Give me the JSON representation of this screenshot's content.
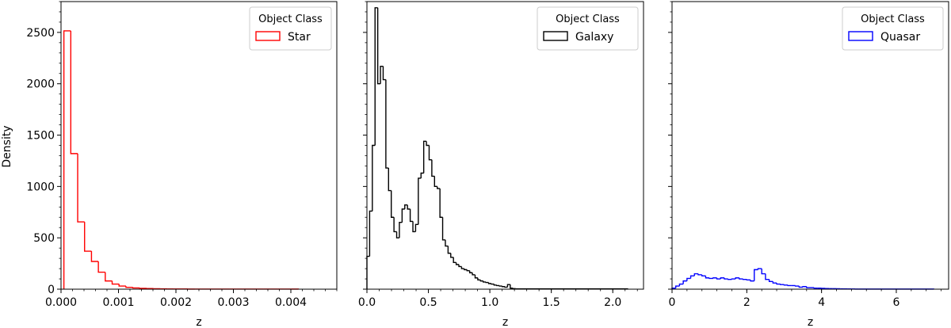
{
  "figure": {
    "ylabel": "Density",
    "xlabel": "z",
    "legend_title": "Object Class"
  },
  "chart_data": [
    {
      "type": "histogram",
      "series": [
        {
          "name": "Star",
          "color": "#ff0000"
        }
      ],
      "xlabel": "z",
      "ylabel": "Density",
      "xlim": [
        0,
        0.0048
      ],
      "ylim": [
        0,
        2800
      ],
      "xticks": [
        0,
        0.001,
        0.002,
        0.003,
        0.004
      ],
      "xtick_labels": [
        "0.000",
        "0.001",
        "0.002",
        "0.003",
        "0.004"
      ],
      "yticks": [
        0,
        500,
        1000,
        1500,
        2000,
        2500
      ],
      "ytick_labels": [
        "0",
        "500",
        "1000",
        "1500",
        "2000",
        "2500"
      ],
      "legend": {
        "title": "Object Class",
        "position": "top-right"
      },
      "bin_edges": [
        5e-05,
        0.00017,
        0.00029,
        0.00041,
        0.00053,
        0.00065,
        0.00077,
        0.00089,
        0.00101,
        0.00113,
        0.00125,
        0.00137,
        0.00149,
        0.00161,
        0.00173,
        0.00185,
        0.00197,
        0.00209,
        0.00221,
        0.00233,
        0.00245,
        0.00257,
        0.00269,
        0.00281,
        0.00293,
        0.00305,
        0.00317,
        0.00329,
        0.00341,
        0.00353,
        0.00365,
        0.00377,
        0.00389,
        0.00401,
        0.00413
      ],
      "values": [
        2515,
        1320,
        655,
        370,
        270,
        165,
        80,
        50,
        30,
        18,
        12,
        8,
        6,
        4,
        3,
        2,
        2,
        2,
        1,
        1,
        1,
        1,
        1,
        1,
        1,
        1,
        1,
        1,
        1,
        1,
        1,
        1,
        1,
        1
      ]
    },
    {
      "type": "histogram",
      "series": [
        {
          "name": "Galaxy",
          "color": "#000000"
        }
      ],
      "xlabel": "z",
      "xlim": [
        0,
        2.25
      ],
      "ylim": [
        0,
        2800
      ],
      "xticks": [
        0,
        0.5,
        1.0,
        1.5,
        2.0
      ],
      "xtick_labels": [
        "0.0",
        "0.5",
        "1.0",
        "1.5",
        "2.0"
      ],
      "legend": {
        "title": "Object Class",
        "position": "top-right"
      },
      "bin_edges": [
        0.0,
        0.022,
        0.044,
        0.066,
        0.088,
        0.11,
        0.132,
        0.154,
        0.176,
        0.198,
        0.22,
        0.242,
        0.264,
        0.286,
        0.308,
        0.33,
        0.352,
        0.374,
        0.396,
        0.418,
        0.44,
        0.462,
        0.484,
        0.506,
        0.528,
        0.55,
        0.572,
        0.594,
        0.616,
        0.638,
        0.66,
        0.682,
        0.704,
        0.726,
        0.748,
        0.77,
        0.792,
        0.814,
        0.836,
        0.858,
        0.88,
        0.902,
        0.924,
        0.946,
        0.968,
        0.99,
        1.012,
        1.034,
        1.056,
        1.078,
        1.1,
        1.122,
        1.144,
        1.166,
        1.188,
        1.21
      ],
      "values": [
        320,
        760,
        1400,
        2740,
        2000,
        2170,
        2040,
        1180,
        960,
        700,
        560,
        500,
        650,
        780,
        820,
        780,
        660,
        560,
        630,
        1080,
        1130,
        1440,
        1400,
        1260,
        1100,
        1000,
        980,
        700,
        480,
        420,
        350,
        310,
        260,
        240,
        220,
        200,
        190,
        180,
        160,
        140,
        110,
        90,
        80,
        70,
        65,
        55,
        50,
        40,
        35,
        30,
        25,
        20,
        45,
        10,
        5
      ],
      "tail": {
        "x0": 1.21,
        "x1": 2.12,
        "value": 3
      }
    },
    {
      "type": "histogram",
      "series": [
        {
          "name": "Quasar",
          "color": "#0000ff"
        }
      ],
      "xlabel": "z",
      "xlim": [
        0,
        7.4
      ],
      "ylim": [
        0,
        2800
      ],
      "xticks": [
        0,
        2,
        4,
        6
      ],
      "xtick_labels": [
        "0",
        "2",
        "4",
        "6"
      ],
      "legend": {
        "title": "Object Class",
        "position": "top-right"
      },
      "bin_edges": [
        0.0,
        0.1,
        0.2,
        0.3,
        0.4,
        0.5,
        0.6,
        0.7,
        0.8,
        0.9,
        1.0,
        1.1,
        1.2,
        1.3,
        1.4,
        1.5,
        1.6,
        1.7,
        1.8,
        1.9,
        2.0,
        2.1,
        2.2,
        2.3,
        2.4,
        2.5,
        2.6,
        2.7,
        2.8,
        2.9,
        3.0,
        3.1,
        3.2,
        3.3,
        3.4,
        3.5,
        3.6,
        3.7,
        3.8,
        3.9,
        4.0,
        4.1,
        4.2,
        4.3,
        4.4,
        4.5,
        4.6,
        4.7,
        4.8,
        4.9,
        5.0
      ],
      "values": [
        10,
        30,
        50,
        80,
        105,
        130,
        150,
        140,
        130,
        110,
        105,
        110,
        100,
        110,
        100,
        95,
        100,
        110,
        100,
        95,
        90,
        80,
        190,
        200,
        150,
        95,
        75,
        60,
        50,
        45,
        40,
        35,
        35,
        30,
        20,
        25,
        15,
        15,
        10,
        10,
        8,
        6,
        5,
        5,
        4,
        3,
        3,
        2,
        2,
        1
      ],
      "tail": {
        "x0": 5.0,
        "x1": 7.0,
        "value": 1
      }
    }
  ]
}
